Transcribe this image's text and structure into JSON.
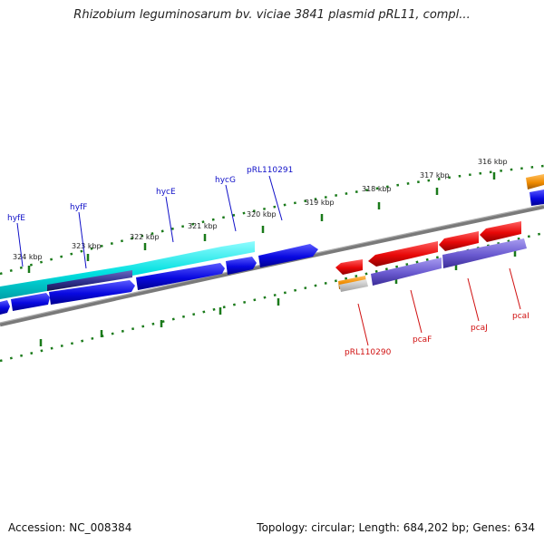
{
  "title": "Rhizobium leguminosarum bv. viciae 3841 plasmid pRL11, compl...",
  "footer": {
    "accession": "Accession: NC_008384",
    "info": "Topology: circular; Length: 684,202 bp; Genes: 634"
  },
  "ticks": [
    {
      "label": "324 kbp"
    },
    {
      "label": "323 kbp"
    },
    {
      "label": "322 kbp"
    },
    {
      "label": "321 kbp"
    },
    {
      "label": "320 kbp"
    },
    {
      "label": "319 kbp"
    },
    {
      "label": "318 kbp"
    },
    {
      "label": "317 kbp"
    },
    {
      "label": "316 kbp"
    }
  ],
  "genes_forward": [
    {
      "name": "hyfE"
    },
    {
      "name": "hyfF"
    },
    {
      "name": "hycE"
    },
    {
      "name": "hycG"
    },
    {
      "name": "pRL110291"
    }
  ],
  "genes_reverse": [
    {
      "name": "pRL110290"
    },
    {
      "name": "pcaF"
    },
    {
      "name": "pcaJ"
    },
    {
      "name": "pcaI"
    }
  ],
  "colors": {
    "cds_forward": "#0a0ae6",
    "cds_reverse": "#e60a0a",
    "region_cyan": "#00e5e5",
    "region_purple": "#7a6ad8",
    "region_orange": "#f08c00",
    "backbone": "#808080",
    "tick_green": "#1a7a1a"
  }
}
